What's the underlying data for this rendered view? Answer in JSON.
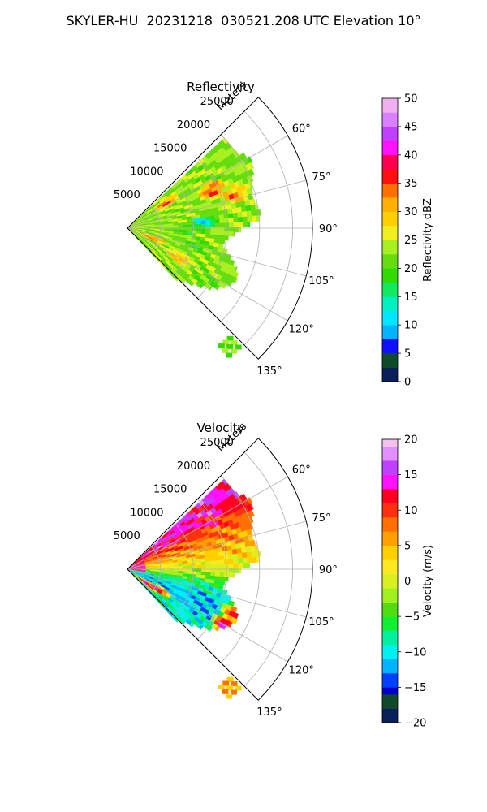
{
  "figure": {
    "title": "SKYLER-HU  20231218  030521.208 UTC Elevation 10°"
  },
  "chart_data": [
    {
      "type": "heatmap",
      "subtype": "polar-sector (PPI radar)",
      "title": "Reflectivity",
      "radial_label": "Meters",
      "radial_ticks": [
        5000,
        10000,
        15000,
        20000,
        25000
      ],
      "radial_tick_labels": [
        "5000",
        "10000",
        "15000",
        "20000",
        "25000"
      ],
      "radial_range": [
        0,
        28000
      ],
      "azimuth_range_deg": [
        45,
        135
      ],
      "azimuth_ticks_deg": [
        60,
        75,
        90,
        105,
        120,
        135
      ],
      "azimuth_tick_labels": [
        "60°",
        "75°",
        "90°",
        "105°",
        "120°",
        "135°"
      ],
      "grid": true,
      "colorbar": {
        "label": "Reflectivity dBZ",
        "range": [
          0,
          50
        ],
        "ticks": [
          0,
          5,
          10,
          15,
          20,
          25,
          30,
          35,
          40,
          45,
          50
        ],
        "tick_labels": [
          "0",
          "5",
          "10",
          "15",
          "20",
          "25",
          "30",
          "35",
          "40",
          "45",
          "50"
        ],
        "position": "right"
      },
      "field": {
        "background_value": 23,
        "echo_extent": [
          {
            "az": 55,
            "r": 20000
          },
          {
            "az": 60,
            "r": 21500
          },
          {
            "az": 65,
            "r": 21000
          },
          {
            "az": 70,
            "r": 20000
          },
          {
            "az": 75,
            "r": 19500
          },
          {
            "az": 80,
            "r": 19800
          },
          {
            "az": 85,
            "r": 20500
          },
          {
            "az": 90,
            "r": 17500
          },
          {
            "az": 95,
            "r": 15500
          },
          {
            "az": 100,
            "r": 14500
          },
          {
            "az": 105,
            "r": 16000
          },
          {
            "az": 110,
            "r": 17500
          },
          {
            "az": 115,
            "r": 18500
          },
          {
            "az": 120,
            "r": 17500
          },
          {
            "az": 125,
            "r": 16000
          },
          {
            "az": 130,
            "r": 13500
          },
          {
            "az": 135,
            "r": 11000
          }
        ],
        "regions": [
          {
            "az": 57,
            "r": 7000,
            "value": 33
          },
          {
            "az": 66,
            "r": 14000,
            "value": 35
          },
          {
            "az": 73,
            "r": 17000,
            "value": 32
          },
          {
            "az": 86,
            "r": 11500,
            "value": 12
          },
          {
            "az": 93,
            "r": 9000,
            "value": 19
          },
          {
            "az": 105,
            "r": 11000,
            "value": 19
          },
          {
            "az": 112,
            "r": 4000,
            "value": 33
          },
          {
            "az": 120,
            "r": 9000,
            "value": 31
          },
          {
            "az": 125,
            "r": 14500,
            "value": 20
          }
        ],
        "outlier": {
          "az": 141,
          "r": 24000,
          "value": 22
        }
      }
    },
    {
      "type": "heatmap",
      "subtype": "polar-sector (PPI radar)",
      "title": "Velocity",
      "radial_label": "Meters",
      "radial_ticks": [
        5000,
        10000,
        15000,
        20000,
        25000
      ],
      "radial_tick_labels": [
        "5000",
        "10000",
        "15000",
        "20000",
        "25000"
      ],
      "radial_range": [
        0,
        28000
      ],
      "azimuth_range_deg": [
        45,
        135
      ],
      "azimuth_ticks_deg": [
        60,
        75,
        90,
        105,
        120,
        135
      ],
      "azimuth_tick_labels": [
        "60°",
        "75°",
        "90°",
        "105°",
        "120°",
        "135°"
      ],
      "grid": true,
      "colorbar": {
        "label": "Velocity (m/s)",
        "range": [
          -20,
          20
        ],
        "ticks": [
          -20,
          -15,
          -10,
          -5,
          0,
          5,
          10,
          15,
          20
        ],
        "tick_labels": [
          "−20",
          "−15",
          "−10",
          "−5",
          "0",
          "5",
          "10",
          "15",
          "20"
        ],
        "position": "right"
      },
      "field": {
        "background_value": 2,
        "echo_extent": [
          {
            "az": 55,
            "r": 20000
          },
          {
            "az": 60,
            "r": 21500
          },
          {
            "az": 65,
            "r": 21000
          },
          {
            "az": 70,
            "r": 20000
          },
          {
            "az": 75,
            "r": 19500
          },
          {
            "az": 80,
            "r": 19800
          },
          {
            "az": 85,
            "r": 20500
          },
          {
            "az": 90,
            "r": 17500
          },
          {
            "az": 95,
            "r": 15500
          },
          {
            "az": 100,
            "r": 14500
          },
          {
            "az": 105,
            "r": 16000
          },
          {
            "az": 110,
            "r": 17500
          },
          {
            "az": 115,
            "r": 18500
          },
          {
            "az": 120,
            "r": 17500
          },
          {
            "az": 125,
            "r": 16000
          },
          {
            "az": 130,
            "r": 13500
          },
          {
            "az": 135,
            "r": 11000
          }
        ],
        "azimuth_profile": [
          {
            "az": 55,
            "value": 14
          },
          {
            "az": 62,
            "value": 10
          },
          {
            "az": 72,
            "value": 7
          },
          {
            "az": 82,
            "value": 3
          },
          {
            "az": 90,
            "value": 0
          },
          {
            "az": 97,
            "value": -4
          },
          {
            "az": 104,
            "value": -9
          },
          {
            "az": 112,
            "value": -11
          },
          {
            "az": 120,
            "value": -11
          },
          {
            "az": 128,
            "value": -9
          },
          {
            "az": 135,
            "value": -9
          }
        ],
        "regions": [
          {
            "az": 120,
            "r": 17000,
            "value": 15
          },
          {
            "az": 113,
            "r": 17500,
            "value": 11
          },
          {
            "az": 127,
            "r": 3500,
            "value": 15
          },
          {
            "az": 123,
            "r": 5500,
            "value": 15
          }
        ],
        "outlier": {
          "az": 141,
          "r": 24000,
          "value": 7
        }
      }
    }
  ]
}
